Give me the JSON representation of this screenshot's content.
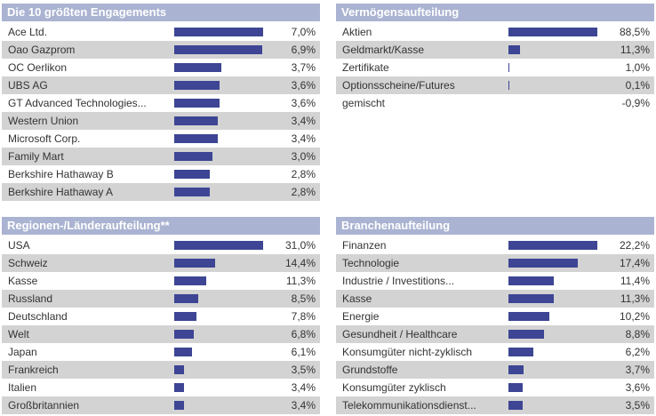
{
  "chart_data": [
    {
      "type": "bar",
      "title": "Die 10 größten Engagements",
      "bar_color": "#3d4594",
      "items": [
        {
          "label": "Ace Ltd.",
          "value": 7.0,
          "display": "7,0%"
        },
        {
          "label": "Oao Gazprom",
          "value": 6.9,
          "display": "6,9%"
        },
        {
          "label": "OC Oerlikon",
          "value": 3.7,
          "display": "3,7%"
        },
        {
          "label": "UBS AG",
          "value": 3.6,
          "display": "3,6%"
        },
        {
          "label": "GT Advanced Technologies...",
          "value": 3.6,
          "display": "3,6%"
        },
        {
          "label": "Western Union",
          "value": 3.4,
          "display": "3,4%"
        },
        {
          "label": "Microsoft Corp.",
          "value": 3.4,
          "display": "3,4%"
        },
        {
          "label": "Family Mart",
          "value": 3.0,
          "display": "3,0%"
        },
        {
          "label": "Berkshire Hathaway B",
          "value": 2.8,
          "display": "2,8%"
        },
        {
          "label": "Berkshire Hathaway A",
          "value": 2.8,
          "display": "2,8%"
        }
      ]
    },
    {
      "type": "bar",
      "title": "Vermögensaufteilung",
      "bar_color": "#3d4594",
      "items": [
        {
          "label": "Aktien",
          "value": 88.5,
          "display": "88,5%"
        },
        {
          "label": "Geldmarkt/Kasse",
          "value": 11.3,
          "display": "11,3%"
        },
        {
          "label": "Zertifikate",
          "value": 1.0,
          "display": "1,0%"
        },
        {
          "label": "Optionsscheine/Futures",
          "value": 0.1,
          "display": "0,1%"
        },
        {
          "label": "gemischt",
          "value": -0.9,
          "display": "-0,9%"
        }
      ]
    },
    {
      "type": "bar",
      "title": "Regionen-/Länderaufteilung**",
      "bar_color": "#3d4594",
      "items": [
        {
          "label": "USA",
          "value": 31.0,
          "display": "31,0%"
        },
        {
          "label": "Schweiz",
          "value": 14.4,
          "display": "14,4%"
        },
        {
          "label": "Kasse",
          "value": 11.3,
          "display": "11,3%"
        },
        {
          "label": "Russland",
          "value": 8.5,
          "display": "8,5%"
        },
        {
          "label": "Deutschland",
          "value": 7.8,
          "display": "7,8%"
        },
        {
          "label": "Welt",
          "value": 6.8,
          "display": "6,8%"
        },
        {
          "label": "Japan",
          "value": 6.1,
          "display": "6,1%"
        },
        {
          "label": "Frankreich",
          "value": 3.5,
          "display": "3,5%"
        },
        {
          "label": "Italien",
          "value": 3.4,
          "display": "3,4%"
        },
        {
          "label": "Großbritannien",
          "value": 3.4,
          "display": "3,4%"
        }
      ]
    },
    {
      "type": "bar",
      "title": "Branchenaufteilung",
      "bar_color": "#3d4594",
      "items": [
        {
          "label": "Finanzen",
          "value": 22.2,
          "display": "22,2%"
        },
        {
          "label": "Technologie",
          "value": 17.4,
          "display": "17,4%"
        },
        {
          "label": "Industrie / Investitions...",
          "value": 11.4,
          "display": "11,4%"
        },
        {
          "label": "Kasse",
          "value": 11.3,
          "display": "11,3%"
        },
        {
          "label": "Energie",
          "value": 10.2,
          "display": "10,2%"
        },
        {
          "label": "Gesundheit / Healthcare",
          "value": 8.8,
          "display": "8,8%"
        },
        {
          "label": "Konsumgüter nicht-zyklisch",
          "value": 6.2,
          "display": "6,2%"
        },
        {
          "label": "Grundstoffe",
          "value": 3.7,
          "display": "3,7%"
        },
        {
          "label": "Konsumgüter zyklisch",
          "value": 3.6,
          "display": "3,6%"
        },
        {
          "label": "Telekommunikationsdienst...",
          "value": 3.5,
          "display": "3,5%"
        }
      ]
    }
  ]
}
